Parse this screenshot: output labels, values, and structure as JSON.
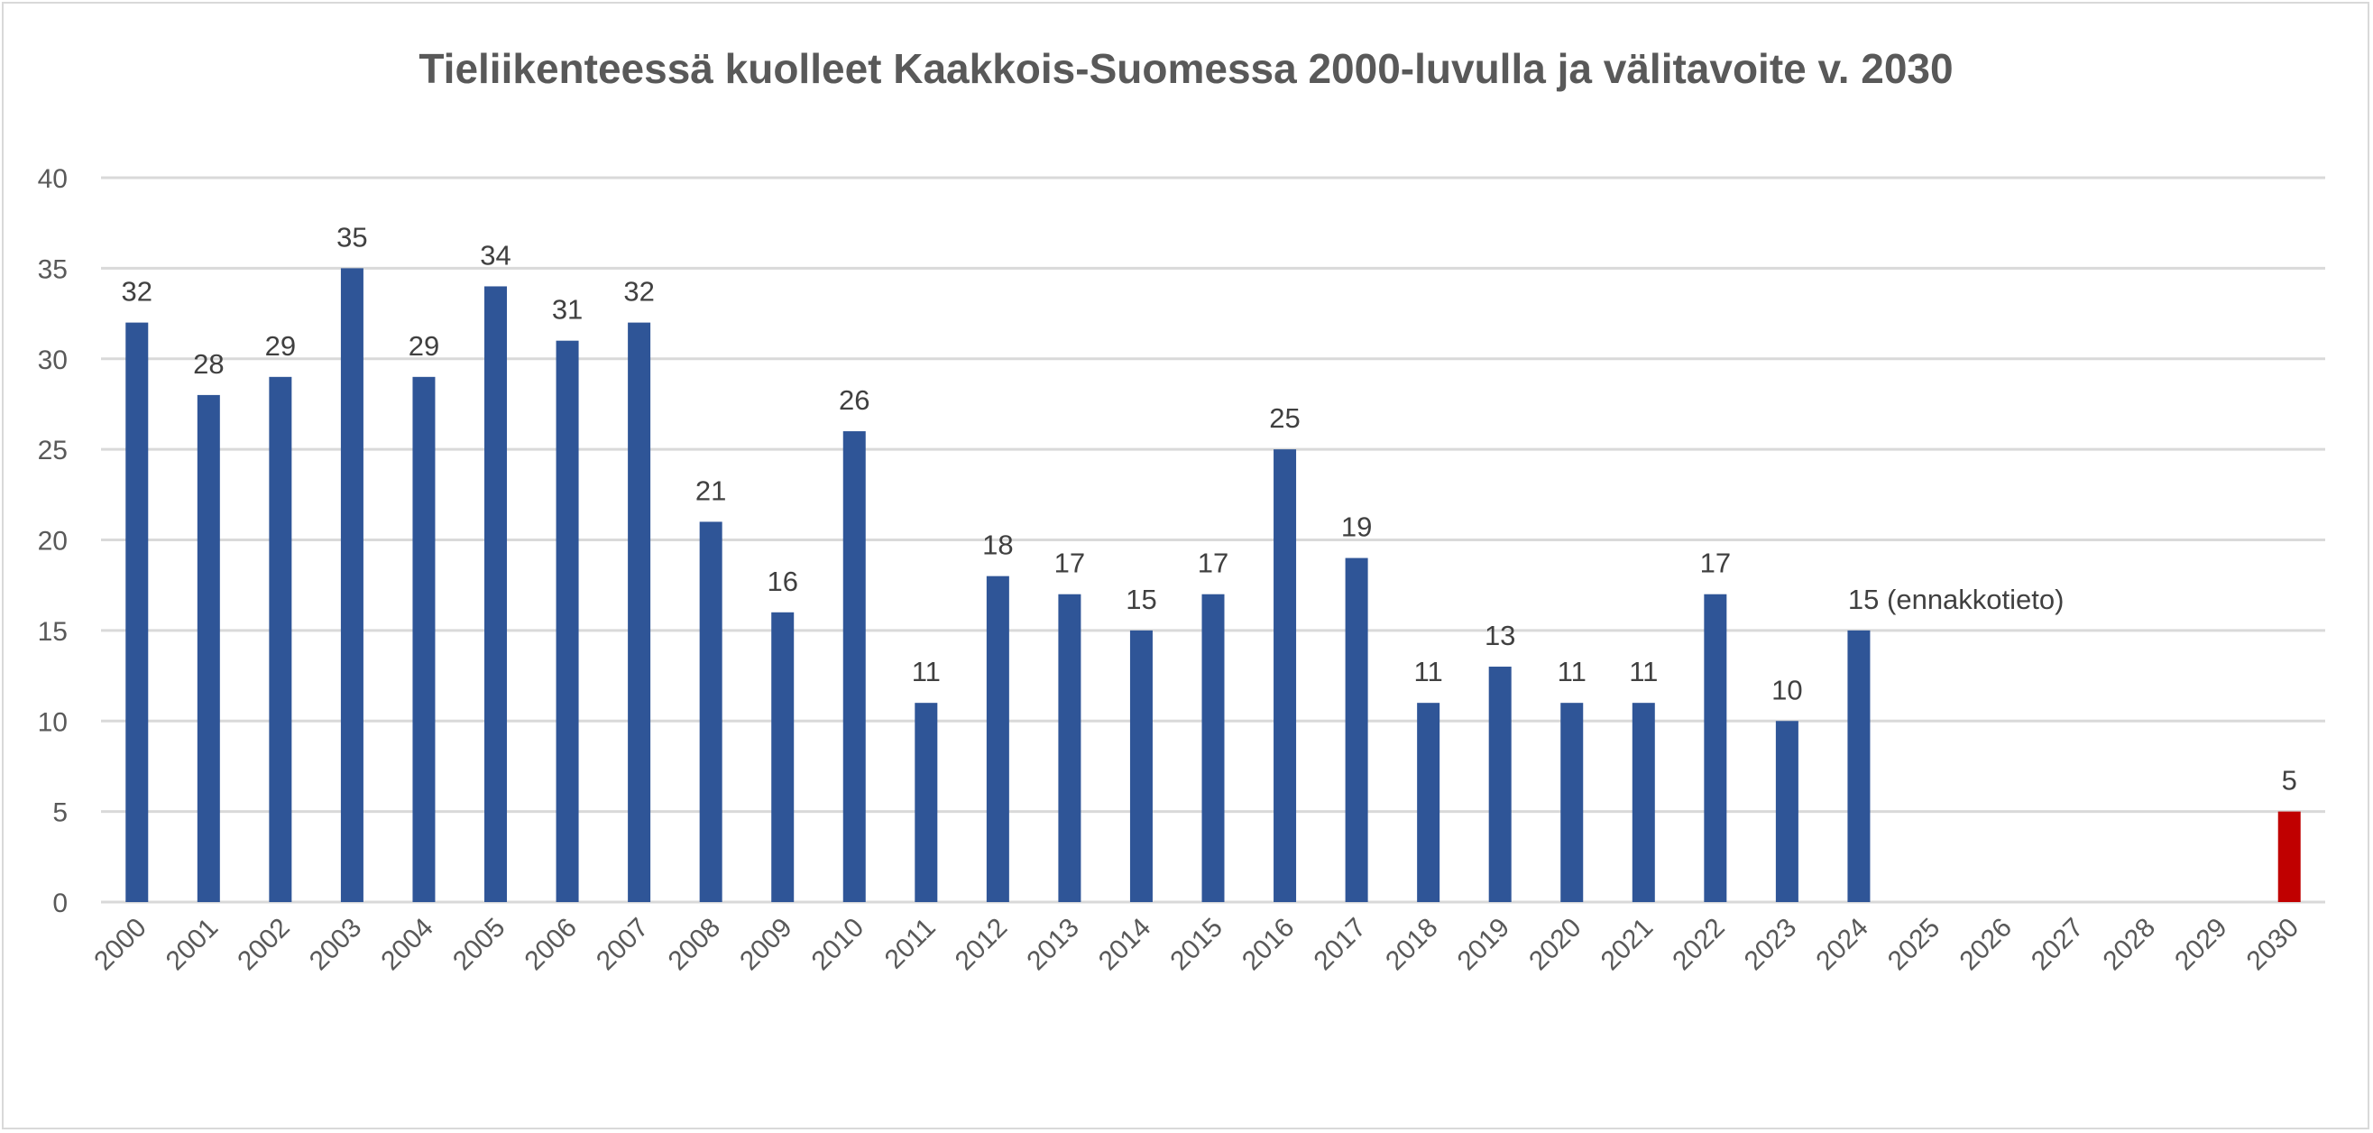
{
  "chart_data": {
    "type": "bar",
    "title": "Tieliikenteessä kuolleet Kaakkois-Suomessa 2000-luvulla ja välitavoite v. 2030",
    "xlabel": "",
    "ylabel": "",
    "ylim": [
      0,
      40
    ],
    "yticks": [
      0,
      5,
      10,
      15,
      20,
      25,
      30,
      35,
      40
    ],
    "grid": true,
    "legend": "none",
    "categories": [
      "2000",
      "2001",
      "2002",
      "2003",
      "2004",
      "2005",
      "2006",
      "2007",
      "2008",
      "2009",
      "2010",
      "2011",
      "2012",
      "2013",
      "2014",
      "2015",
      "2016",
      "2017",
      "2018",
      "2019",
      "2020",
      "2021",
      "2022",
      "2023",
      "2024",
      "2025",
      "2026",
      "2027",
      "2028",
      "2029",
      "2030"
    ],
    "values": [
      32,
      28,
      29,
      35,
      29,
      34,
      31,
      32,
      21,
      16,
      26,
      11,
      18,
      17,
      15,
      17,
      25,
      19,
      11,
      13,
      11,
      11,
      17,
      10,
      15,
      null,
      null,
      null,
      null,
      null,
      5
    ],
    "data_labels": [
      "32",
      "28",
      "29",
      "35",
      "29",
      "34",
      "31",
      "32",
      "21",
      "16",
      "26",
      "11",
      "18",
      "17",
      "15",
      "17",
      "25",
      "19",
      "11",
      "13",
      "11",
      "11",
      "17",
      "10",
      "15 (ennakkotieto)",
      "",
      "",
      "",
      "",
      "",
      "5"
    ],
    "colors": {
      "actual": "#2F5597",
      "target": "#C00000",
      "grid": "#D9D9D9",
      "text": "#595959"
    },
    "target_category": "2030"
  }
}
